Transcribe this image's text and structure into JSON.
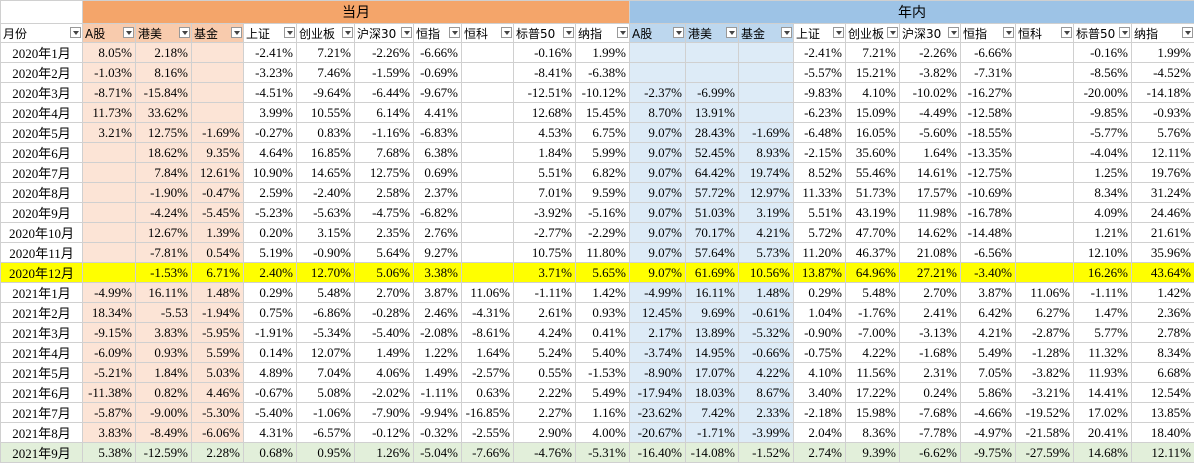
{
  "header": {
    "month_label": "月份",
    "groups": [
      {
        "title": "当月",
        "fill": "#f4a56a",
        "header_fill": "#f8cbad",
        "cell_fill": "#fce4d6",
        "columns": [
          "A股",
          "港美",
          "基金",
          "上证",
          "创业板",
          "沪深30",
          "恒指",
          "恒科",
          "标普50",
          "纳指"
        ]
      },
      {
        "title": "年内",
        "fill": "#9dc3e6",
        "header_fill": "#bdd7ee",
        "cell_fill": "#ddebf7",
        "columns": [
          "A股",
          "港美",
          "基金",
          "上证",
          "创业板",
          "沪深30",
          "恒指",
          "恒科",
          "标普50",
          "纳指"
        ]
      }
    ]
  },
  "rows": [
    {
      "month": "2020年1月",
      "fill": null,
      "values": [
        [
          "8.05%",
          "2.18%",
          null,
          "-2.41%",
          "7.21%",
          "-2.26%",
          "-6.66%",
          null,
          "-0.16%",
          "1.99%"
        ],
        [
          null,
          null,
          null,
          "-2.41%",
          "7.21%",
          "-2.26%",
          "-6.66%",
          null,
          "-0.16%",
          "1.99%"
        ]
      ]
    },
    {
      "month": "2020年2月",
      "fill": null,
      "values": [
        [
          "-1.03%",
          "8.16%",
          null,
          "-3.23%",
          "7.46%",
          "-1.59%",
          "-0.69%",
          null,
          "-8.41%",
          "-6.38%"
        ],
        [
          null,
          null,
          null,
          "-5.57%",
          "15.21%",
          "-3.82%",
          "-7.31%",
          null,
          "-8.56%",
          "-4.52%"
        ]
      ]
    },
    {
      "month": "2020年3月",
      "fill": null,
      "values": [
        [
          "-8.71%",
          "-15.84%",
          null,
          "-4.51%",
          "-9.64%",
          "-6.44%",
          "-9.67%",
          null,
          "-12.51%",
          "-10.12%"
        ],
        [
          "-2.37%",
          "-6.99%",
          null,
          "-9.83%",
          "4.10%",
          "-10.02%",
          "-16.27%",
          null,
          "-20.00%",
          "-14.18%"
        ]
      ]
    },
    {
      "month": "2020年4月",
      "fill": null,
      "values": [
        [
          "11.73%",
          "33.62%",
          null,
          "3.99%",
          "10.55%",
          "6.14%",
          "4.41%",
          null,
          "12.68%",
          "15.45%"
        ],
        [
          "8.70%",
          "13.91%",
          null,
          "-6.23%",
          "15.09%",
          "-4.49%",
          "-12.58%",
          null,
          "-9.85%",
          "-0.93%"
        ]
      ]
    },
    {
      "month": "2020年5月",
      "fill": null,
      "values": [
        [
          "3.21%",
          "12.75%",
          "-1.69%",
          "-0.27%",
          "0.83%",
          "-1.16%",
          "-6.83%",
          null,
          "4.53%",
          "6.75%"
        ],
        [
          "9.07%",
          "28.43%",
          "-1.69%",
          "-6.48%",
          "16.05%",
          "-5.60%",
          "-18.55%",
          null,
          "-5.77%",
          "5.76%"
        ]
      ]
    },
    {
      "month": "2020年6月",
      "fill": null,
      "values": [
        [
          null,
          "18.62%",
          "9.35%",
          "4.64%",
          "16.85%",
          "7.68%",
          "6.38%",
          null,
          "1.84%",
          "5.99%"
        ],
        [
          "9.07%",
          "52.45%",
          "8.93%",
          "-2.15%",
          "35.60%",
          "1.64%",
          "-13.35%",
          null,
          "-4.04%",
          "12.11%"
        ]
      ]
    },
    {
      "month": "2020年7月",
      "fill": null,
      "values": [
        [
          null,
          "7.84%",
          "12.61%",
          "10.90%",
          "14.65%",
          "12.75%",
          "0.69%",
          null,
          "5.51%",
          "6.82%"
        ],
        [
          "9.07%",
          "64.42%",
          "19.74%",
          "8.52%",
          "55.46%",
          "14.61%",
          "-12.75%",
          null,
          "1.25%",
          "19.76%"
        ]
      ]
    },
    {
      "month": "2020年8月",
      "fill": null,
      "values": [
        [
          null,
          "-1.90%",
          "-0.47%",
          "2.59%",
          "-2.40%",
          "2.58%",
          "2.37%",
          null,
          "7.01%",
          "9.59%"
        ],
        [
          "9.07%",
          "57.72%",
          "12.97%",
          "11.33%",
          "51.73%",
          "17.57%",
          "-10.69%",
          null,
          "8.34%",
          "31.24%"
        ]
      ]
    },
    {
      "month": "2020年9月",
      "fill": null,
      "values": [
        [
          null,
          "-4.24%",
          "-5.45%",
          "-5.23%",
          "-5.63%",
          "-4.75%",
          "-6.82%",
          null,
          "-3.92%",
          "-5.16%"
        ],
        [
          "9.07%",
          "51.03%",
          "3.19%",
          "5.51%",
          "43.19%",
          "11.98%",
          "-16.78%",
          null,
          "4.09%",
          "24.46%"
        ]
      ]
    },
    {
      "month": "2020年10月",
      "fill": null,
      "values": [
        [
          null,
          "12.67%",
          "1.39%",
          "0.20%",
          "3.15%",
          "2.35%",
          "2.76%",
          null,
          "-2.77%",
          "-2.29%"
        ],
        [
          "9.07%",
          "70.17%",
          "4.21%",
          "5.72%",
          "47.70%",
          "14.62%",
          "-14.48%",
          null,
          "1.21%",
          "21.61%"
        ]
      ]
    },
    {
      "month": "2020年11月",
      "fill": null,
      "values": [
        [
          null,
          "-7.81%",
          "0.54%",
          "5.19%",
          "-0.90%",
          "5.64%",
          "9.27%",
          null,
          "10.75%",
          "11.80%"
        ],
        [
          "9.07%",
          "57.64%",
          "5.73%",
          "11.20%",
          "46.37%",
          "21.08%",
          "-6.56%",
          null,
          "12.10%",
          "35.96%"
        ]
      ]
    },
    {
      "month": "2020年12月",
      "fill": "#ffff00",
      "values": [
        [
          null,
          "-1.53%",
          "6.71%",
          "2.40%",
          "12.70%",
          "5.06%",
          "3.38%",
          null,
          "3.71%",
          "5.65%"
        ],
        [
          "9.07%",
          "61.69%",
          "10.56%",
          "13.87%",
          "64.96%",
          "27.21%",
          "-3.40%",
          null,
          "16.26%",
          "43.64%"
        ]
      ]
    },
    {
      "month": "2021年1月",
      "fill": null,
      "values": [
        [
          "-4.99%",
          "16.11%",
          "1.48%",
          "0.29%",
          "5.48%",
          "2.70%",
          "3.87%",
          "11.06%",
          "-1.11%",
          "1.42%"
        ],
        [
          "-4.99%",
          "16.11%",
          "1.48%",
          "0.29%",
          "5.48%",
          "2.70%",
          "3.87%",
          "11.06%",
          "-1.11%",
          "1.42%"
        ]
      ]
    },
    {
      "month": "2021年2月",
      "fill": null,
      "values": [
        [
          "18.34%",
          "-5.53",
          "-1.94%",
          "0.75%",
          "-6.86%",
          "-0.28%",
          "2.46%",
          "-4.31%",
          "2.61%",
          "0.93%"
        ],
        [
          "12.45%",
          "9.69%",
          "-0.61%",
          "1.04%",
          "-1.76%",
          "2.41%",
          "6.42%",
          "6.27%",
          "1.47%",
          "2.36%"
        ]
      ]
    },
    {
      "month": "2021年3月",
      "fill": null,
      "values": [
        [
          "-9.15%",
          "3.83%",
          "-5.95%",
          "-1.91%",
          "-5.34%",
          "-5.40%",
          "-2.08%",
          "-8.61%",
          "4.24%",
          "0.41%"
        ],
        [
          "2.17%",
          "13.89%",
          "-5.32%",
          "-0.90%",
          "-7.00%",
          "-3.13%",
          "4.21%",
          "-2.87%",
          "5.77%",
          "2.78%"
        ]
      ]
    },
    {
      "month": "2021年4月",
      "fill": null,
      "values": [
        [
          "-6.09%",
          "0.93%",
          "5.59%",
          "0.14%",
          "12.07%",
          "1.49%",
          "1.22%",
          "1.64%",
          "5.24%",
          "5.40%"
        ],
        [
          "-3.74%",
          "14.95%",
          "-0.66%",
          "-0.75%",
          "4.22%",
          "-1.68%",
          "5.49%",
          "-1.28%",
          "11.32%",
          "8.34%"
        ]
      ]
    },
    {
      "month": "2021年5月",
      "fill": null,
      "values": [
        [
          "-5.21%",
          "1.84%",
          "5.03%",
          "4.89%",
          "7.04%",
          "4.06%",
          "1.49%",
          "-2.57%",
          "0.55%",
          "-1.53%"
        ],
        [
          "-8.90%",
          "17.07%",
          "4.22%",
          "4.10%",
          "11.56%",
          "2.31%",
          "7.05%",
          "-3.82%",
          "11.93%",
          "6.68%"
        ]
      ]
    },
    {
      "month": "2021年6月",
      "fill": null,
      "values": [
        [
          "-11.38%",
          "0.82%",
          "4.46%",
          "-0.67%",
          "5.08%",
          "-2.02%",
          "-1.11%",
          "0.63%",
          "2.22%",
          "5.49%"
        ],
        [
          "-17.94%",
          "18.03%",
          "8.67%",
          "3.40%",
          "17.22%",
          "0.24%",
          "5.86%",
          "-3.21%",
          "14.41%",
          "12.54%"
        ]
      ]
    },
    {
      "month": "2021年7月",
      "fill": null,
      "values": [
        [
          "-5.87%",
          "-9.00%",
          "-5.30%",
          "-5.40%",
          "-1.06%",
          "-7.90%",
          "-9.94%",
          "-16.85%",
          "2.27%",
          "1.16%"
        ],
        [
          "-23.62%",
          "7.42%",
          "2.33%",
          "-2.18%",
          "15.98%",
          "-7.68%",
          "-4.66%",
          "-19.52%",
          "17.02%",
          "13.85%"
        ]
      ]
    },
    {
      "month": "2021年8月",
      "fill": null,
      "values": [
        [
          "3.83%",
          "-8.49%",
          "-6.06%",
          "4.31%",
          "-6.57%",
          "-0.12%",
          "-0.32%",
          "-2.55%",
          "2.90%",
          "4.00%"
        ],
        [
          "-20.67%",
          "-1.71%",
          "-3.99%",
          "2.04%",
          "8.36%",
          "-7.78%",
          "-4.97%",
          "-21.58%",
          "20.41%",
          "18.40%"
        ]
      ]
    },
    {
      "month": "2021年9月",
      "fill": "#e2efda",
      "values": [
        [
          "5.38%",
          "-12.59%",
          "2.28%",
          "0.68%",
          "0.95%",
          "1.26%",
          "-5.04%",
          "-7.66%",
          "-4.76%",
          "-5.31%"
        ],
        [
          "-16.40%",
          "-14.08%",
          "-1.52%",
          "2.74%",
          "9.39%",
          "-6.62%",
          "-9.75%",
          "-27.59%",
          "14.68%",
          "12.11%"
        ]
      ]
    }
  ]
}
